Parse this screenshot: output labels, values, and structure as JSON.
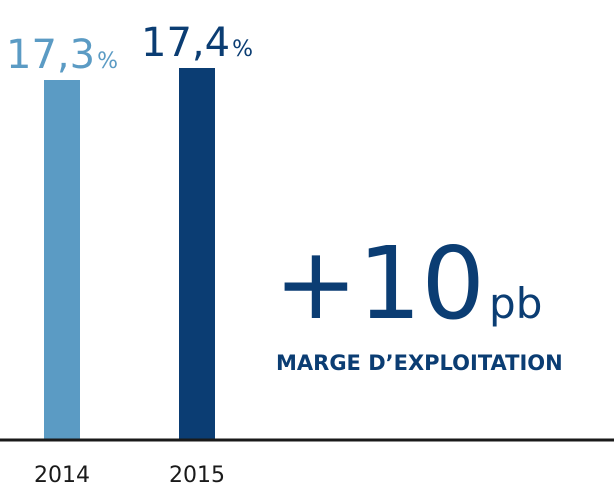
{
  "chart_data": {
    "type": "bar",
    "categories": [
      "2014",
      "2015"
    ],
    "values": [
      17.3,
      17.4
    ],
    "value_labels": [
      "17,3%",
      "17,4%"
    ],
    "colors": [
      "#5b9bc4",
      "#0b3d73"
    ],
    "ylim": [
      14.3,
      17.5
    ],
    "annotation": "+10pb",
    "annotation_label": "MARGE D’EXPLOITATION"
  }
}
